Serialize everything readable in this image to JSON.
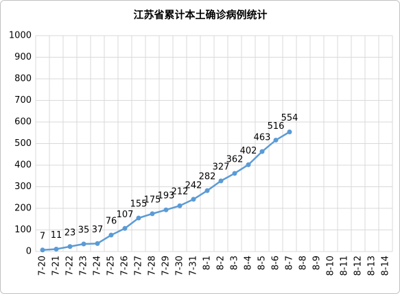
{
  "chart_data": {
    "type": "line",
    "title": "江苏省累计本土确诊病例统计",
    "categories": [
      "7-20",
      "7-21",
      "7-22",
      "7-23",
      "7-24",
      "7-25",
      "7-26",
      "7-27",
      "7-28",
      "7-29",
      "7-30",
      "7-31",
      "8-1",
      "8-2",
      "8-3",
      "8-4",
      "8-5",
      "8-6",
      "8-7",
      "8-8",
      "8-9",
      "8-10",
      "8-11",
      "8-12",
      "8-13",
      "8-14"
    ],
    "series": [
      {
        "color": "#5b9bd5",
        "values": [
          7,
          11,
          23,
          35,
          37,
          76,
          107,
          155,
          175,
          193,
          212,
          242,
          282,
          327,
          362,
          402,
          463,
          516,
          554,
          null,
          null,
          null,
          null,
          null,
          null,
          null
        ]
      }
    ],
    "ylim": [
      0,
      1000
    ],
    "yticks": [
      0,
      100,
      200,
      300,
      400,
      500,
      600,
      700,
      800,
      900,
      1000
    ],
    "grid": true
  }
}
